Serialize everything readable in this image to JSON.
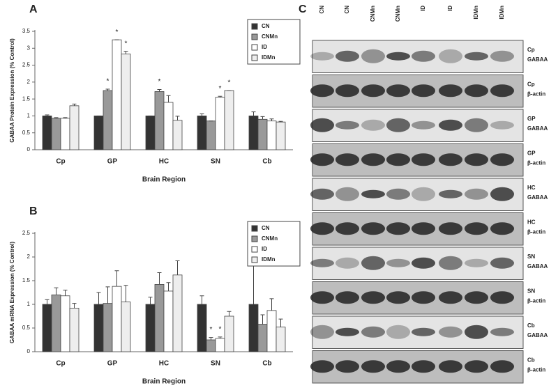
{
  "chart_data": [
    {
      "type": "bar",
      "panel_label": "A",
      "y_label": "GABAA Protein Expression (% Control)",
      "x_label": "Brain Region",
      "categories": [
        "Cp",
        "GP",
        "HC",
        "SN",
        "Cb"
      ],
      "ylim": [
        0,
        3.5
      ],
      "yticks": [
        0,
        0.5,
        1,
        1.5,
        2,
        2.5,
        3,
        3.5
      ],
      "legend": "upper right",
      "series": [
        {
          "name": "CN",
          "color": "#333333",
          "values": [
            1.0,
            1.0,
            1.0,
            1.0,
            1.0
          ],
          "errors": [
            0.03,
            0,
            0,
            0.06,
            0.12
          ],
          "significance": [
            null,
            null,
            null,
            null,
            null
          ]
        },
        {
          "name": "CNMn",
          "color": "#999999",
          "values": [
            0.93,
            1.75,
            1.72,
            0.85,
            0.9
          ],
          "errors": [
            0.02,
            0.04,
            0.06,
            0,
            0.08
          ],
          "significance": [
            null,
            "*",
            "*",
            null,
            null
          ]
        },
        {
          "name": "ID",
          "color": "#ffffff",
          "values": [
            0.93,
            3.25,
            1.4,
            1.55,
            0.85
          ],
          "errors": [
            0.02,
            0,
            0.2,
            0.03,
            0.06
          ],
          "significance": [
            null,
            "*",
            null,
            "*",
            null
          ]
        },
        {
          "name": "IDMn",
          "color": "#eeeeee",
          "values": [
            1.3,
            2.83,
            0.87,
            1.75,
            0.82
          ],
          "errors": [
            0.05,
            0.08,
            0.12,
            0,
            0.02
          ],
          "significance": [
            null,
            "*",
            null,
            "*",
            null
          ]
        }
      ]
    },
    {
      "type": "bar",
      "panel_label": "B",
      "y_label": "GABAA mRNA Expression (% Control)",
      "x_label": "Brain Region",
      "categories": [
        "Cp",
        "GP",
        "HC",
        "SN",
        "Cb"
      ],
      "ylim": [
        0,
        2.5
      ],
      "yticks": [
        0,
        0.5,
        1,
        1.5,
        2,
        2.5
      ],
      "legend": "upper right",
      "series": [
        {
          "name": "CN",
          "color": "#333333",
          "values": [
            1.0,
            1.0,
            1.0,
            1.0,
            1.0
          ],
          "errors": [
            0.1,
            0.25,
            0.15,
            0.18,
            0.85
          ],
          "significance": [
            null,
            null,
            null,
            null,
            null
          ]
        },
        {
          "name": "CNMn",
          "color": "#999999",
          "values": [
            1.2,
            1.02,
            1.42,
            0.25,
            0.58
          ],
          "errors": [
            0.15,
            0.35,
            0.25,
            0.05,
            0.2
          ],
          "significance": [
            null,
            null,
            null,
            "*",
            null
          ]
        },
        {
          "name": "ID",
          "color": "#ffffff",
          "values": [
            1.18,
            1.38,
            1.28,
            0.28,
            0.87
          ],
          "errors": [
            0.12,
            0.33,
            0.18,
            0.03,
            0.25
          ],
          "significance": [
            null,
            null,
            null,
            "*",
            null
          ]
        },
        {
          "name": "IDMn",
          "color": "#eeeeee",
          "values": [
            0.92,
            1.05,
            1.62,
            0.75,
            0.52
          ],
          "errors": [
            0.1,
            0.35,
            0.3,
            0.1,
            0.17
          ],
          "significance": [
            null,
            null,
            null,
            null,
            null
          ]
        }
      ]
    }
  ],
  "blot": {
    "panel_label": "C",
    "lanes": [
      "CN",
      "CN",
      "CNMn",
      "CNMn",
      "ID",
      "ID",
      "IDMn",
      "IDMn"
    ],
    "rows": [
      {
        "region": "Cp",
        "protein": "GABAA"
      },
      {
        "region": "Cp",
        "protein": "β-actin"
      },
      {
        "region": "GP",
        "protein": "GABAA"
      },
      {
        "region": "GP",
        "protein": "β-actin"
      },
      {
        "region": "HC",
        "protein": "GABAA"
      },
      {
        "region": "HC",
        "protein": "β-actin"
      },
      {
        "region": "SN",
        "protein": "GABAA"
      },
      {
        "region": "SN",
        "protein": "β-actin"
      },
      {
        "region": "Cb",
        "protein": "GABAA"
      },
      {
        "region": "Cb",
        "protein": "β-actin"
      }
    ]
  }
}
